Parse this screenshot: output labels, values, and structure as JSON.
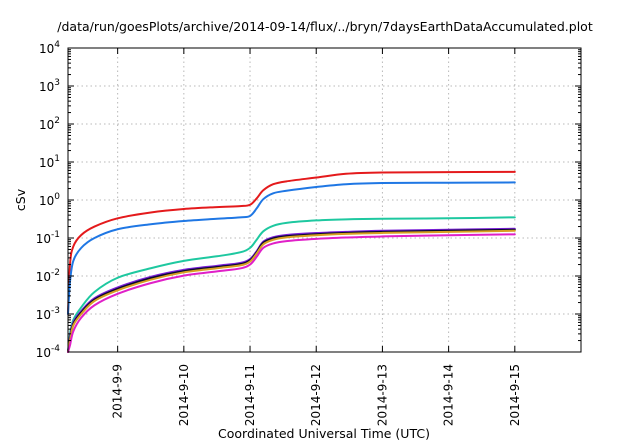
{
  "chart_data": {
    "type": "line",
    "title": "/data/run/goesPlots/archive/2014-09-14/flux/../bryn/7daysEarthDataAccumulated.plot",
    "xlabel": "Coordinated Universal Time (UTC)",
    "ylabel": "cSv",
    "y_scale": "log",
    "ylim": [
      0.0001,
      10000
    ],
    "xlim": [
      0,
      7.75
    ],
    "y_ticks": [
      {
        "value": 0.0001,
        "base": "10",
        "exp": "-4"
      },
      {
        "value": 0.001,
        "base": "10",
        "exp": "-3"
      },
      {
        "value": 0.01,
        "base": "10",
        "exp": "-2"
      },
      {
        "value": 0.1,
        "base": "10",
        "exp": "-1"
      },
      {
        "value": 1,
        "base": "10",
        "exp": "0"
      },
      {
        "value": 10,
        "base": "10",
        "exp": "1"
      },
      {
        "value": 100,
        "base": "10",
        "exp": "2"
      },
      {
        "value": 1000,
        "base": "10",
        "exp": "3"
      },
      {
        "value": 10000,
        "base": "10",
        "exp": "4"
      }
    ],
    "x_ticks": [
      {
        "value": 0.75,
        "label": "2014-9-9"
      },
      {
        "value": 1.75,
        "label": "2014-9-10"
      },
      {
        "value": 2.75,
        "label": "2014-9-11"
      },
      {
        "value": 3.75,
        "label": "2014-9-12"
      },
      {
        "value": 4.75,
        "label": "2014-9-13"
      },
      {
        "value": 5.75,
        "label": "2014-9-14"
      },
      {
        "value": 6.75,
        "label": "2014-9-15"
      }
    ],
    "grid": true,
    "legend": "none",
    "series": [
      {
        "color": "#e41a1c",
        "x": [
          0,
          0.03,
          0.08,
          0.2,
          0.4,
          0.75,
          1.25,
          1.75,
          2.25,
          2.6,
          2.75,
          2.85,
          2.95,
          3.1,
          3.3,
          3.75,
          4.2,
          4.75,
          5.75,
          6.75
        ],
        "y": [
          0.001,
          0.02,
          0.06,
          0.12,
          0.2,
          0.33,
          0.47,
          0.58,
          0.65,
          0.69,
          0.75,
          1.1,
          1.8,
          2.6,
          3.1,
          3.9,
          4.9,
          5.3,
          5.4,
          5.5
        ]
      },
      {
        "color": "#1f77e4",
        "x": [
          0,
          0.03,
          0.08,
          0.2,
          0.4,
          0.75,
          1.25,
          1.75,
          2.25,
          2.6,
          2.75,
          2.85,
          2.95,
          3.1,
          3.3,
          3.75,
          4.2,
          4.75,
          5.75,
          6.75
        ],
        "y": [
          0.001,
          0.007,
          0.025,
          0.055,
          0.1,
          0.17,
          0.23,
          0.28,
          0.32,
          0.35,
          0.38,
          0.6,
          1.05,
          1.5,
          1.75,
          2.2,
          2.6,
          2.8,
          2.85,
          2.9
        ]
      },
      {
        "color": "#1ec8a0",
        "x": [
          0,
          0.03,
          0.08,
          0.2,
          0.4,
          0.75,
          1.25,
          1.75,
          2.25,
          2.6,
          2.75,
          2.85,
          2.95,
          3.1,
          3.3,
          3.75,
          4.2,
          4.75,
          5.75,
          6.75
        ],
        "y": [
          0.0001,
          0.0003,
          0.0007,
          0.0015,
          0.0038,
          0.009,
          0.016,
          0.025,
          0.033,
          0.042,
          0.055,
          0.09,
          0.15,
          0.21,
          0.25,
          0.29,
          0.31,
          0.32,
          0.33,
          0.35
        ]
      },
      {
        "color": "#7a1fd8",
        "x": [
          0,
          0.03,
          0.08,
          0.2,
          0.4,
          0.75,
          1.25,
          1.75,
          2.25,
          2.6,
          2.75,
          2.85,
          2.95,
          3.1,
          3.3,
          3.75,
          4.2,
          4.75,
          5.75,
          6.75
        ],
        "y": [
          0.0001,
          0.00025,
          0.0006,
          0.0012,
          0.0026,
          0.005,
          0.0095,
          0.0145,
          0.0185,
          0.022,
          0.028,
          0.045,
          0.08,
          0.105,
          0.12,
          0.135,
          0.145,
          0.155,
          0.165,
          0.175
        ]
      },
      {
        "color": "#0a0a30",
        "x": [
          0,
          0.03,
          0.08,
          0.2,
          0.4,
          0.75,
          1.25,
          1.75,
          2.25,
          2.6,
          2.75,
          2.85,
          2.95,
          3.1,
          3.3,
          3.75,
          4.2,
          4.75,
          5.75,
          6.75
        ],
        "y": [
          0.0001,
          0.00022,
          0.00055,
          0.0011,
          0.0024,
          0.0046,
          0.0088,
          0.0135,
          0.0172,
          0.0205,
          0.026,
          0.042,
          0.075,
          0.098,
          0.112,
          0.126,
          0.136,
          0.145,
          0.155,
          0.165
        ]
      },
      {
        "color": "#d8a020",
        "x": [
          0,
          0.03,
          0.08,
          0.2,
          0.4,
          0.75,
          1.25,
          1.75,
          2.25,
          2.6,
          2.75,
          2.85,
          2.95,
          3.1,
          3.3,
          3.75,
          4.2,
          4.75,
          5.75,
          6.75
        ],
        "y": [
          0.0001,
          0.0002,
          0.0005,
          0.001,
          0.0022,
          0.0042,
          0.008,
          0.0125,
          0.016,
          0.019,
          0.024,
          0.039,
          0.068,
          0.09,
          0.104,
          0.118,
          0.128,
          0.136,
          0.145,
          0.155
        ]
      },
      {
        "color": "#e020c8",
        "x": [
          0,
          0.03,
          0.08,
          0.2,
          0.4,
          0.75,
          1.25,
          1.75,
          2.25,
          2.6,
          2.75,
          2.85,
          2.95,
          3.1,
          3.3,
          3.75,
          4.2,
          4.75,
          5.75,
          6.75
        ],
        "y": [
          0.0001,
          0.00015,
          0.00035,
          0.0008,
          0.0017,
          0.0034,
          0.0065,
          0.0102,
          0.0132,
          0.0158,
          0.02,
          0.032,
          0.055,
          0.072,
          0.083,
          0.095,
          0.103,
          0.11,
          0.118,
          0.125
        ]
      }
    ]
  }
}
